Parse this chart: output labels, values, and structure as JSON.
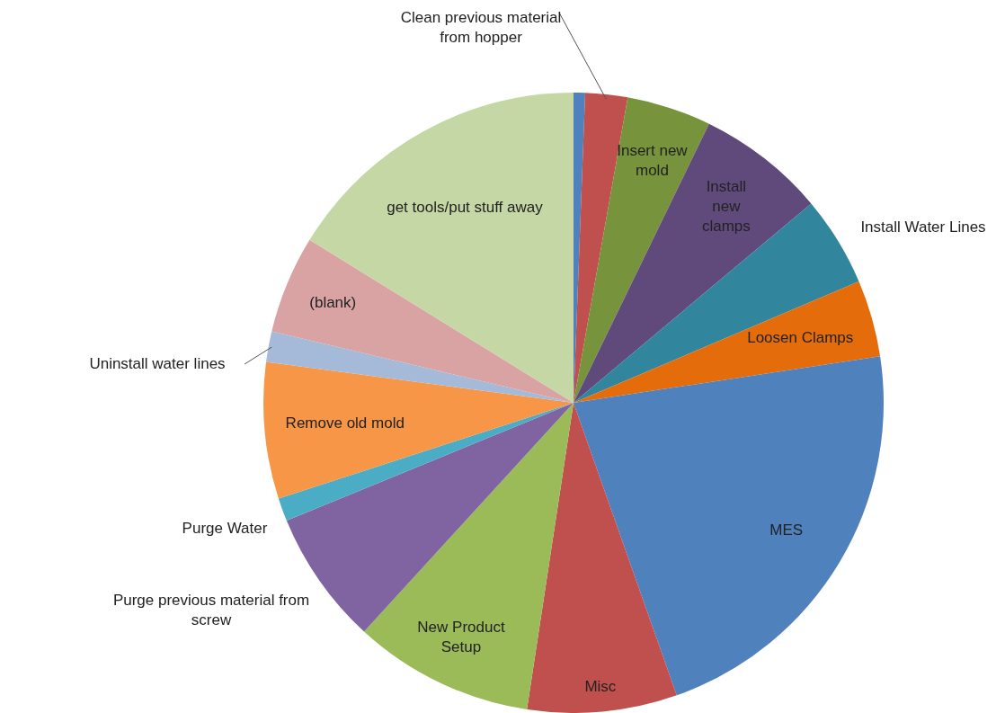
{
  "chart_data": {
    "type": "pie",
    "categories": [
      null,
      "Clean previous material from hopper",
      "Insert new mold",
      "Install new clamps",
      "Install Water Lines",
      "Loosen Clamps",
      "MES",
      "Misc",
      "New Product Setup",
      "Purge previous material from screw",
      "Purge Water",
      "Remove old mold",
      "Uninstall water lines",
      "(blank)",
      "get tools/put stuff away"
    ],
    "values": [
      0.6,
      2.2,
      4.4,
      6.7,
      4.7,
      4.0,
      22.0,
      7.8,
      9.4,
      7.0,
      1.2,
      7.1,
      1.6,
      5.1,
      16.2
    ],
    "colors": [
      "#4f81bd",
      "#c0504d",
      "#77933c",
      "#604a7b",
      "#31859c",
      "#e46c0a",
      "#4f81bd",
      "#c0504d",
      "#9bbb59",
      "#8064a2",
      "#4bacc6",
      "#f79646",
      "#a5b9d9",
      "#d9a3a3",
      "#c4d7a4"
    ],
    "legend": false
  }
}
